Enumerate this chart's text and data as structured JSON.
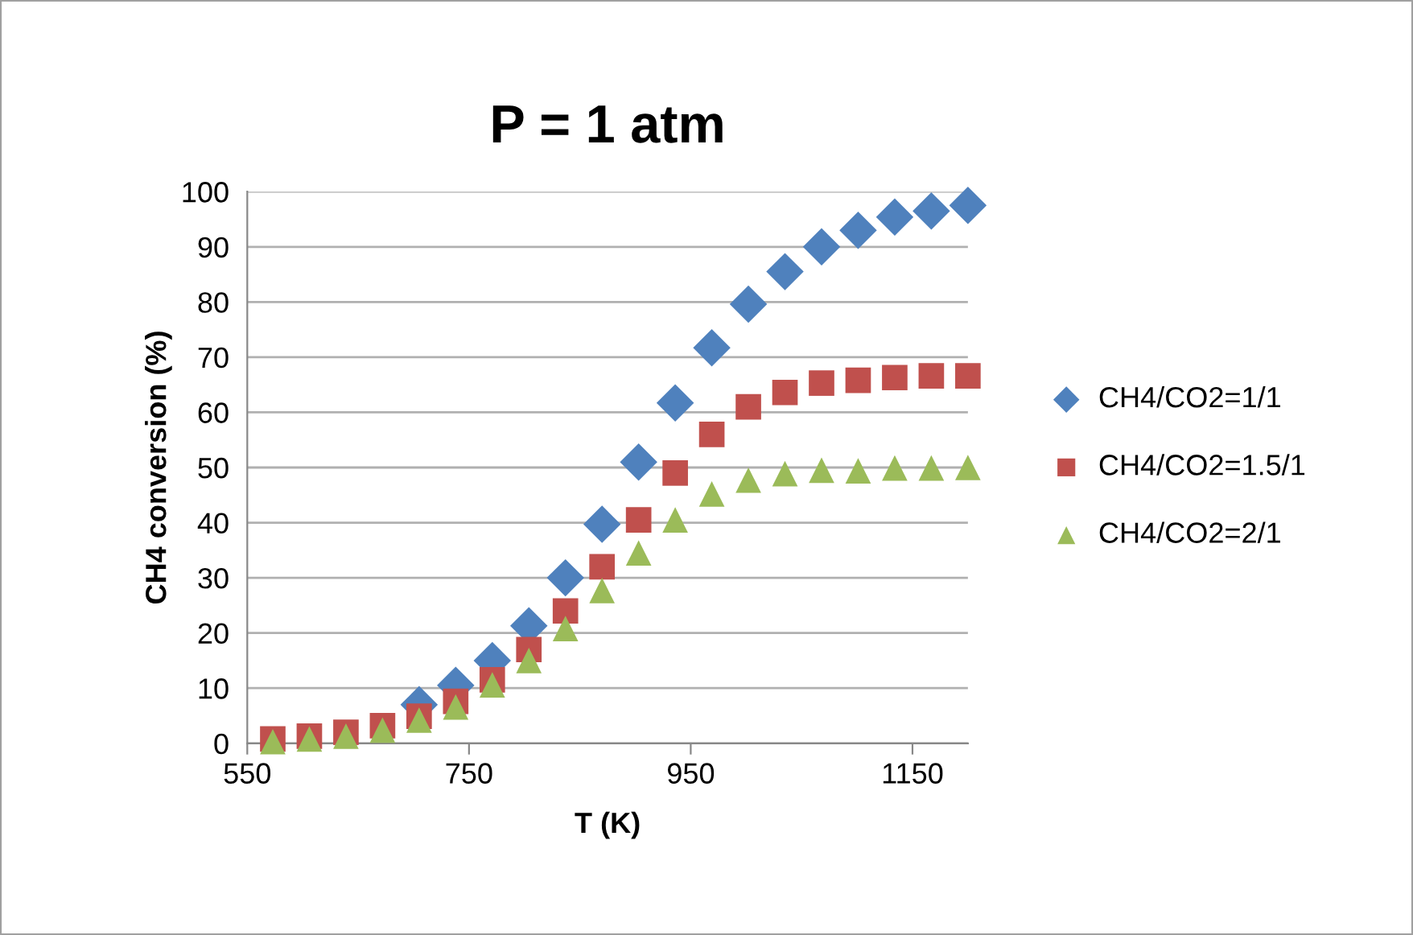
{
  "chart_data": {
    "type": "scatter",
    "title": "P = 1 atm",
    "xlabel": "T (K)",
    "ylabel": "CH4 conversion (%)",
    "x": [
      573,
      606,
      639,
      672,
      705,
      738,
      771,
      804,
      837,
      870,
      903,
      936,
      969,
      1002,
      1035,
      1068,
      1101,
      1134,
      1167,
      1200
    ],
    "series": [
      {
        "name": "CH4/CO2=1/1",
        "color": "#4f81bd",
        "marker": "diamond",
        "values": [
          null,
          null,
          null,
          null,
          7,
          10.5,
          15,
          21.3,
          30,
          39.7,
          51,
          61.7,
          71.7,
          79.6,
          85.5,
          90,
          93,
          95.4,
          96.5,
          97.5
        ]
      },
      {
        "name": "CH4/CO2=1.5/1",
        "color": "#c0504d",
        "marker": "square",
        "values": [
          0.8,
          1.3,
          2,
          3.2,
          4.9,
          7.6,
          11.5,
          17,
          24,
          32,
          40.5,
          49,
          56,
          61,
          63.6,
          65.3,
          65.8,
          66.3,
          66.6,
          66.6
        ]
      },
      {
        "name": "CH4/CO2=2/1",
        "color": "#9bbb59",
        "marker": "triangle",
        "values": [
          0.3,
          0.8,
          1.3,
          2.4,
          4.2,
          6.6,
          10.6,
          15,
          20.8,
          27.7,
          34.5,
          40.5,
          45.2,
          47.7,
          48.9,
          49.5,
          49.4,
          49.9,
          49.9,
          50
        ]
      }
    ],
    "xlim": [
      550,
      1200
    ],
    "xticks": [
      550,
      750,
      950,
      1150
    ],
    "ylim": [
      0,
      100
    ],
    "yticks": [
      0,
      10,
      20,
      30,
      40,
      50,
      60,
      70,
      80,
      90,
      100
    ],
    "grid": "y",
    "legend": "right"
  }
}
